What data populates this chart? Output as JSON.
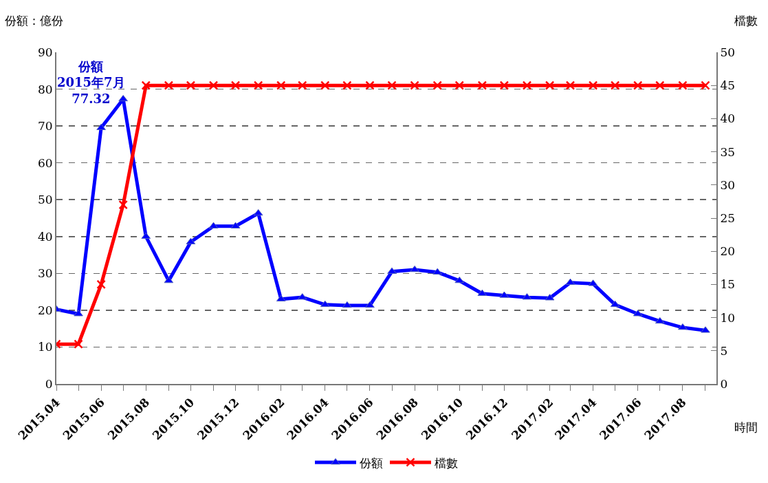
{
  "chart_data": {
    "type": "line",
    "ylabel": "份額：億份",
    "y2label": "檔數",
    "xlabel": "時間",
    "x": [
      "2015-04",
      "2015-05",
      "2015-06",
      "2015-07",
      "2015-08",
      "2015-09",
      "2015-10",
      "2015-11",
      "2015-12",
      "2016-01",
      "2016-02",
      "2016-03",
      "2016-04",
      "2016-05",
      "2016-06",
      "2016-07",
      "2016-08",
      "2016-09",
      "2016-10",
      "2016-11",
      "2016-12",
      "2017-01",
      "2017-02",
      "2017-03",
      "2017-04",
      "2017-05",
      "2017-06",
      "2017-07",
      "2017-08",
      "2017-09"
    ],
    "series": [
      {
        "name": "份額",
        "color": "#0000ff",
        "marker": "triangle",
        "values": [
          20.2,
          19,
          69.5,
          77.32,
          40,
          28,
          38.5,
          42.8,
          42.8,
          46.3,
          23,
          23.5,
          21.5,
          21.3,
          21.3,
          30.5,
          31,
          30.3,
          28,
          24.5,
          24,
          23.5,
          23.3,
          27.5,
          27.2,
          21.5,
          19,
          17,
          15.3,
          14.5
        ]
      },
      {
        "name": "檔數",
        "color": "#ff0000",
        "marker": "cross",
        "axis": "y2",
        "values": [
          6,
          6,
          15,
          27,
          45,
          45,
          45,
          45,
          45,
          45,
          45,
          45,
          45,
          45,
          45,
          45,
          45,
          45,
          45,
          45,
          45,
          45,
          45,
          45,
          45,
          45,
          45,
          45,
          45,
          45
        ]
      }
    ],
    "annotations": [
      {
        "text": "份額\n2015年7月\n77.32",
        "x": "2015-07",
        "y": 77.32
      }
    ],
    "xlim": [
      "2015-04-01",
      "2017-09-16"
    ],
    "xticks": [
      {
        "value": "2015-04",
        "label": "2015.04"
      },
      {
        "value": "2015-05",
        "label": null
      },
      {
        "value": "2015-06",
        "label": "2015.06"
      },
      {
        "value": "2015-07",
        "label": null
      },
      {
        "value": "2015-08",
        "label": "2015.08"
      },
      {
        "value": "2015-09",
        "label": null
      },
      {
        "value": "2015-10",
        "label": "2015.10"
      },
      {
        "value": "2015-11",
        "label": null
      },
      {
        "value": "2015-12",
        "label": "2015.12"
      },
      {
        "value": "2016-01",
        "label": null
      },
      {
        "value": "2016-02",
        "label": "2016.02"
      },
      {
        "value": "2016-03",
        "label": null
      },
      {
        "value": "2016-04",
        "label": "2016.04"
      },
      {
        "value": "2016-05",
        "label": null
      },
      {
        "value": "2016-06",
        "label": "2016.06"
      },
      {
        "value": "2016-07",
        "label": null
      },
      {
        "value": "2016-08",
        "label": "2016.08"
      },
      {
        "value": "2016-09",
        "label": null
      },
      {
        "value": "2016-10",
        "label": "2016.10"
      },
      {
        "value": "2016-11",
        "label": null
      },
      {
        "value": "2016-12",
        "label": "2016.12"
      },
      {
        "value": "2017-01",
        "label": null
      },
      {
        "value": "2017-02",
        "label": "2017.02"
      },
      {
        "value": "2017-03",
        "label": null
      },
      {
        "value": "2017-04",
        "label": "2017.04"
      },
      {
        "value": "2017-05",
        "label": null
      },
      {
        "value": "2017-06",
        "label": "2017.06"
      },
      {
        "value": "2017-07",
        "label": null
      },
      {
        "value": "2017-08",
        "label": "2017.08"
      },
      {
        "value": "2017-09",
        "label": null
      }
    ],
    "ylim": [
      0,
      90
    ],
    "yticks": [
      0,
      10,
      20,
      30,
      40,
      50,
      60,
      70,
      80,
      90
    ],
    "y2lim": [
      0,
      50
    ],
    "y2ticks": [
      0,
      5,
      10,
      15,
      20,
      25,
      30,
      35,
      40,
      45,
      50
    ],
    "grid": "y",
    "legend": "bottom",
    "line_style": "solid"
  }
}
